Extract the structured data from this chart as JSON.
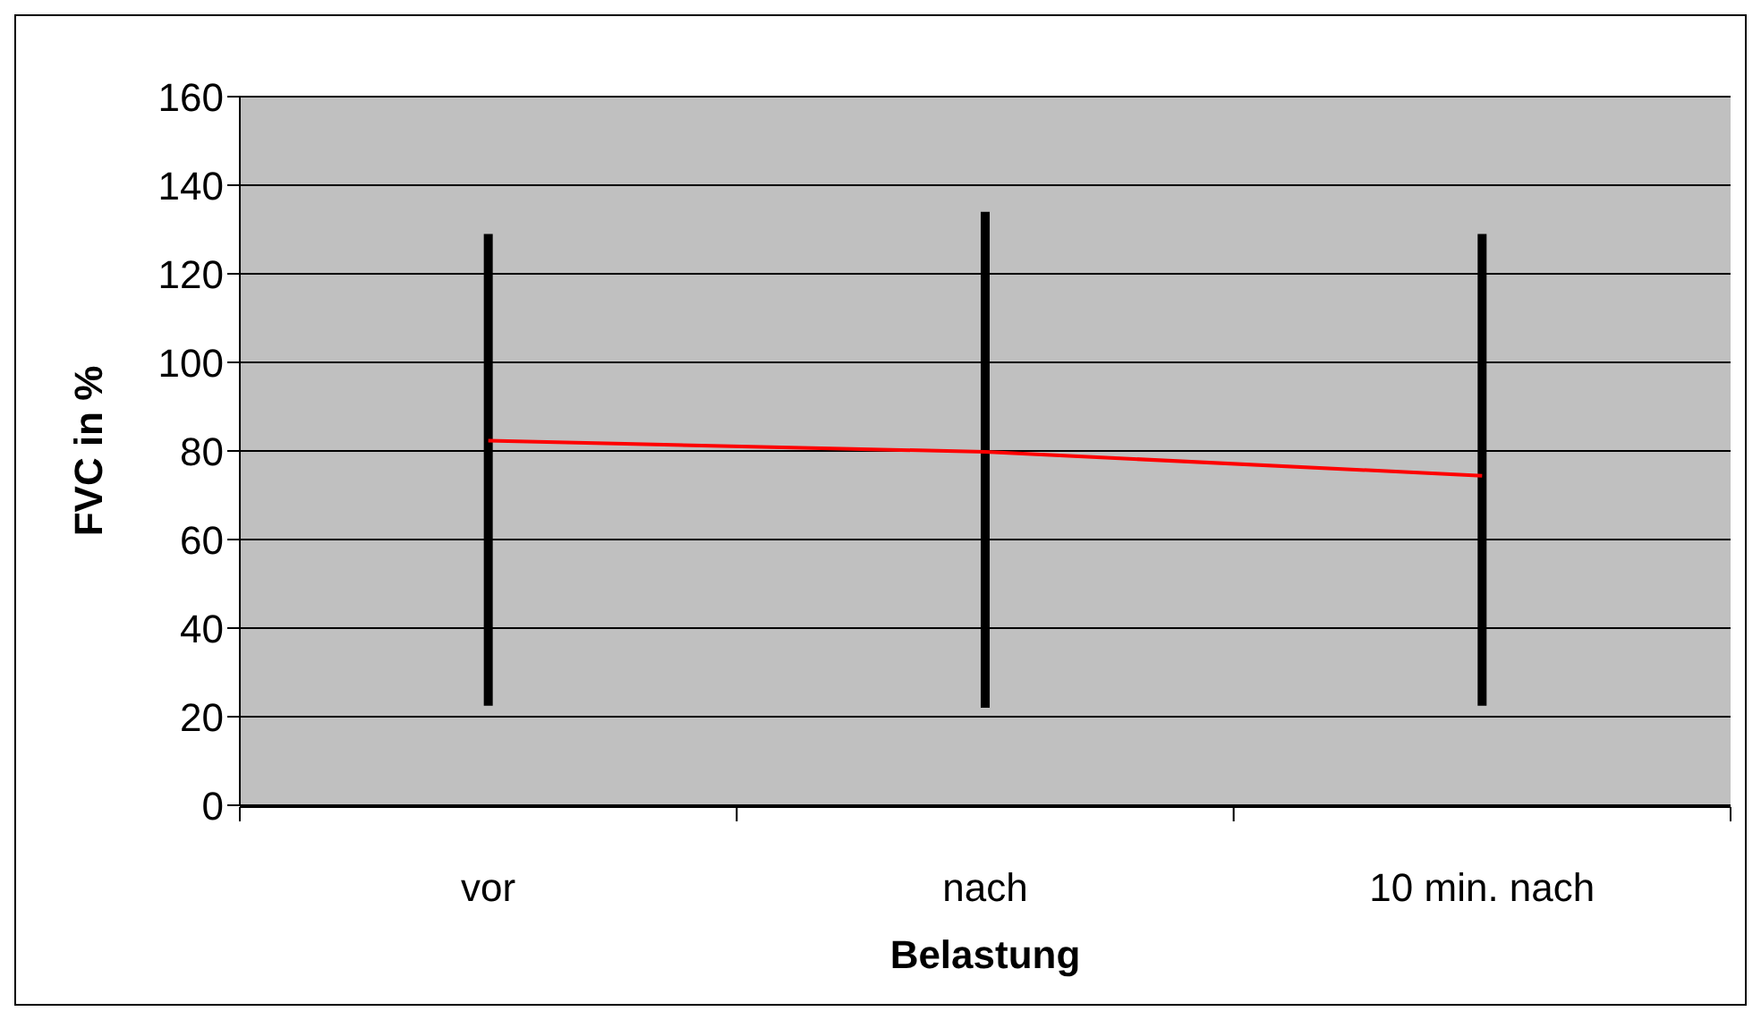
{
  "chart_data": {
    "type": "line",
    "xlabel": "Belastung",
    "ylabel": "FVC in %",
    "categories": [
      "vor",
      "nach",
      "10 min. nach"
    ],
    "series": [
      {
        "color": "#ff0000",
        "values": [
          82.3,
          79.8,
          74.4
        ],
        "errors": [
          [
            22.5,
            129
          ],
          [
            22,
            134
          ],
          [
            22.5,
            129
          ]
        ]
      }
    ],
    "ylim": [
      0,
      160
    ],
    "yticks": [
      0,
      20,
      40,
      60,
      80,
      100,
      120,
      140,
      160
    ],
    "grid": "y",
    "marker": "none",
    "line_style": "solid"
  }
}
